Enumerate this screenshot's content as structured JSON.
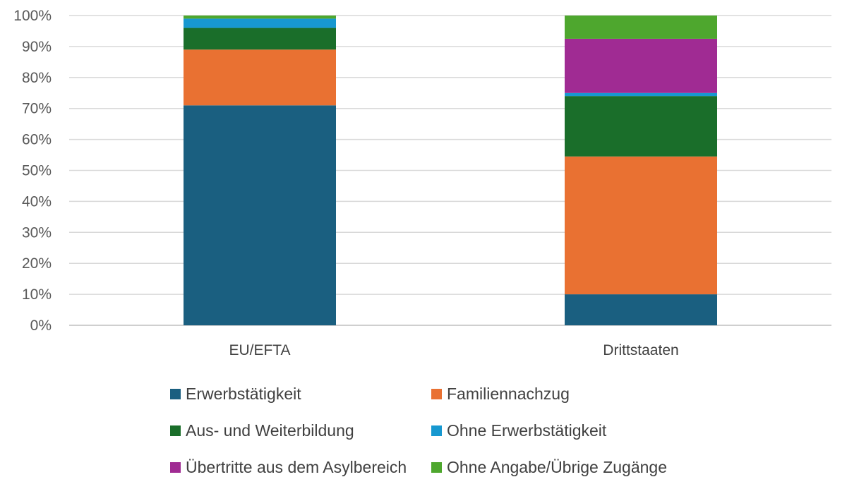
{
  "chart_data": {
    "type": "bar",
    "stacked": true,
    "title": "",
    "xlabel": "",
    "ylabel": "",
    "ylim": [
      0,
      100
    ],
    "y_ticks": [
      "0%",
      "10%",
      "20%",
      "30%",
      "40%",
      "50%",
      "60%",
      "70%",
      "80%",
      "90%",
      "100%"
    ],
    "categories": [
      "EU/EFTA",
      "Drittstaaten"
    ],
    "series": [
      {
        "name": "Erwerbstätigkeit",
        "color": "#1a5f80",
        "values": [
          71,
          10
        ]
      },
      {
        "name": "Familiennachzug",
        "color": "#e97132",
        "values": [
          18,
          44.5
        ]
      },
      {
        "name": "Aus- und Weiterbildung",
        "color": "#1a6e2a",
        "values": [
          7,
          19.5
        ]
      },
      {
        "name": "Ohne Erwerbstätigkeit",
        "color": "#1798d0",
        "values": [
          3,
          1
        ]
      },
      {
        "name": "Übertritte aus dem Asylbereich",
        "color": "#a02b93",
        "values": [
          0,
          17.5
        ]
      },
      {
        "name": "Ohne Angabe/Übrige Zugänge",
        "color": "#4ea72e",
        "values": [
          1,
          7.5
        ]
      }
    ],
    "legend_position": "bottom"
  }
}
